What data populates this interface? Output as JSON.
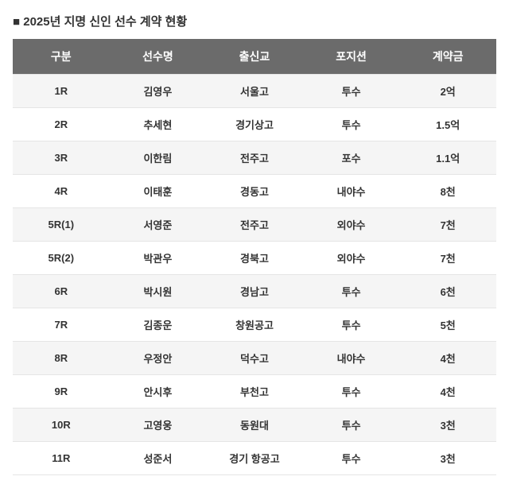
{
  "title": "2025년 지명 신인 선수 계약 현황",
  "table": {
    "columns": [
      "구분",
      "선수명",
      "출신교",
      "포지션",
      "계약금"
    ],
    "rows": [
      [
        "1R",
        "김영우",
        "서울고",
        "투수",
        "2억"
      ],
      [
        "2R",
        "추세현",
        "경기상고",
        "투수",
        "1.5억"
      ],
      [
        "3R",
        "이한림",
        "전주고",
        "포수",
        "1.1억"
      ],
      [
        "4R",
        "이태훈",
        "경동고",
        "내야수",
        "8천"
      ],
      [
        "5R(1)",
        "서영준",
        "전주고",
        "외야수",
        "7천"
      ],
      [
        "5R(2)",
        "박관우",
        "경북고",
        "외야수",
        "7천"
      ],
      [
        "6R",
        "박시원",
        "경남고",
        "투수",
        "6천"
      ],
      [
        "7R",
        "김종운",
        "창원공고",
        "투수",
        "5천"
      ],
      [
        "8R",
        "우정안",
        "덕수고",
        "내야수",
        "4천"
      ],
      [
        "9R",
        "안시후",
        "부천고",
        "투수",
        "4천"
      ],
      [
        "10R",
        "고영웅",
        "동원대",
        "투수",
        "3천"
      ],
      [
        "11R",
        "성준서",
        "경기 항공고",
        "투수",
        "3천"
      ]
    ]
  },
  "styling": {
    "header_bg": "#6b6b6b",
    "header_text_color": "#ffffff",
    "odd_row_bg": "#f5f5f5",
    "even_row_bg": "#ffffff",
    "border_color": "#e5e5e5",
    "text_color": "#333333",
    "title_fontsize": 15,
    "header_fontsize": 14,
    "cell_fontsize": 13
  }
}
